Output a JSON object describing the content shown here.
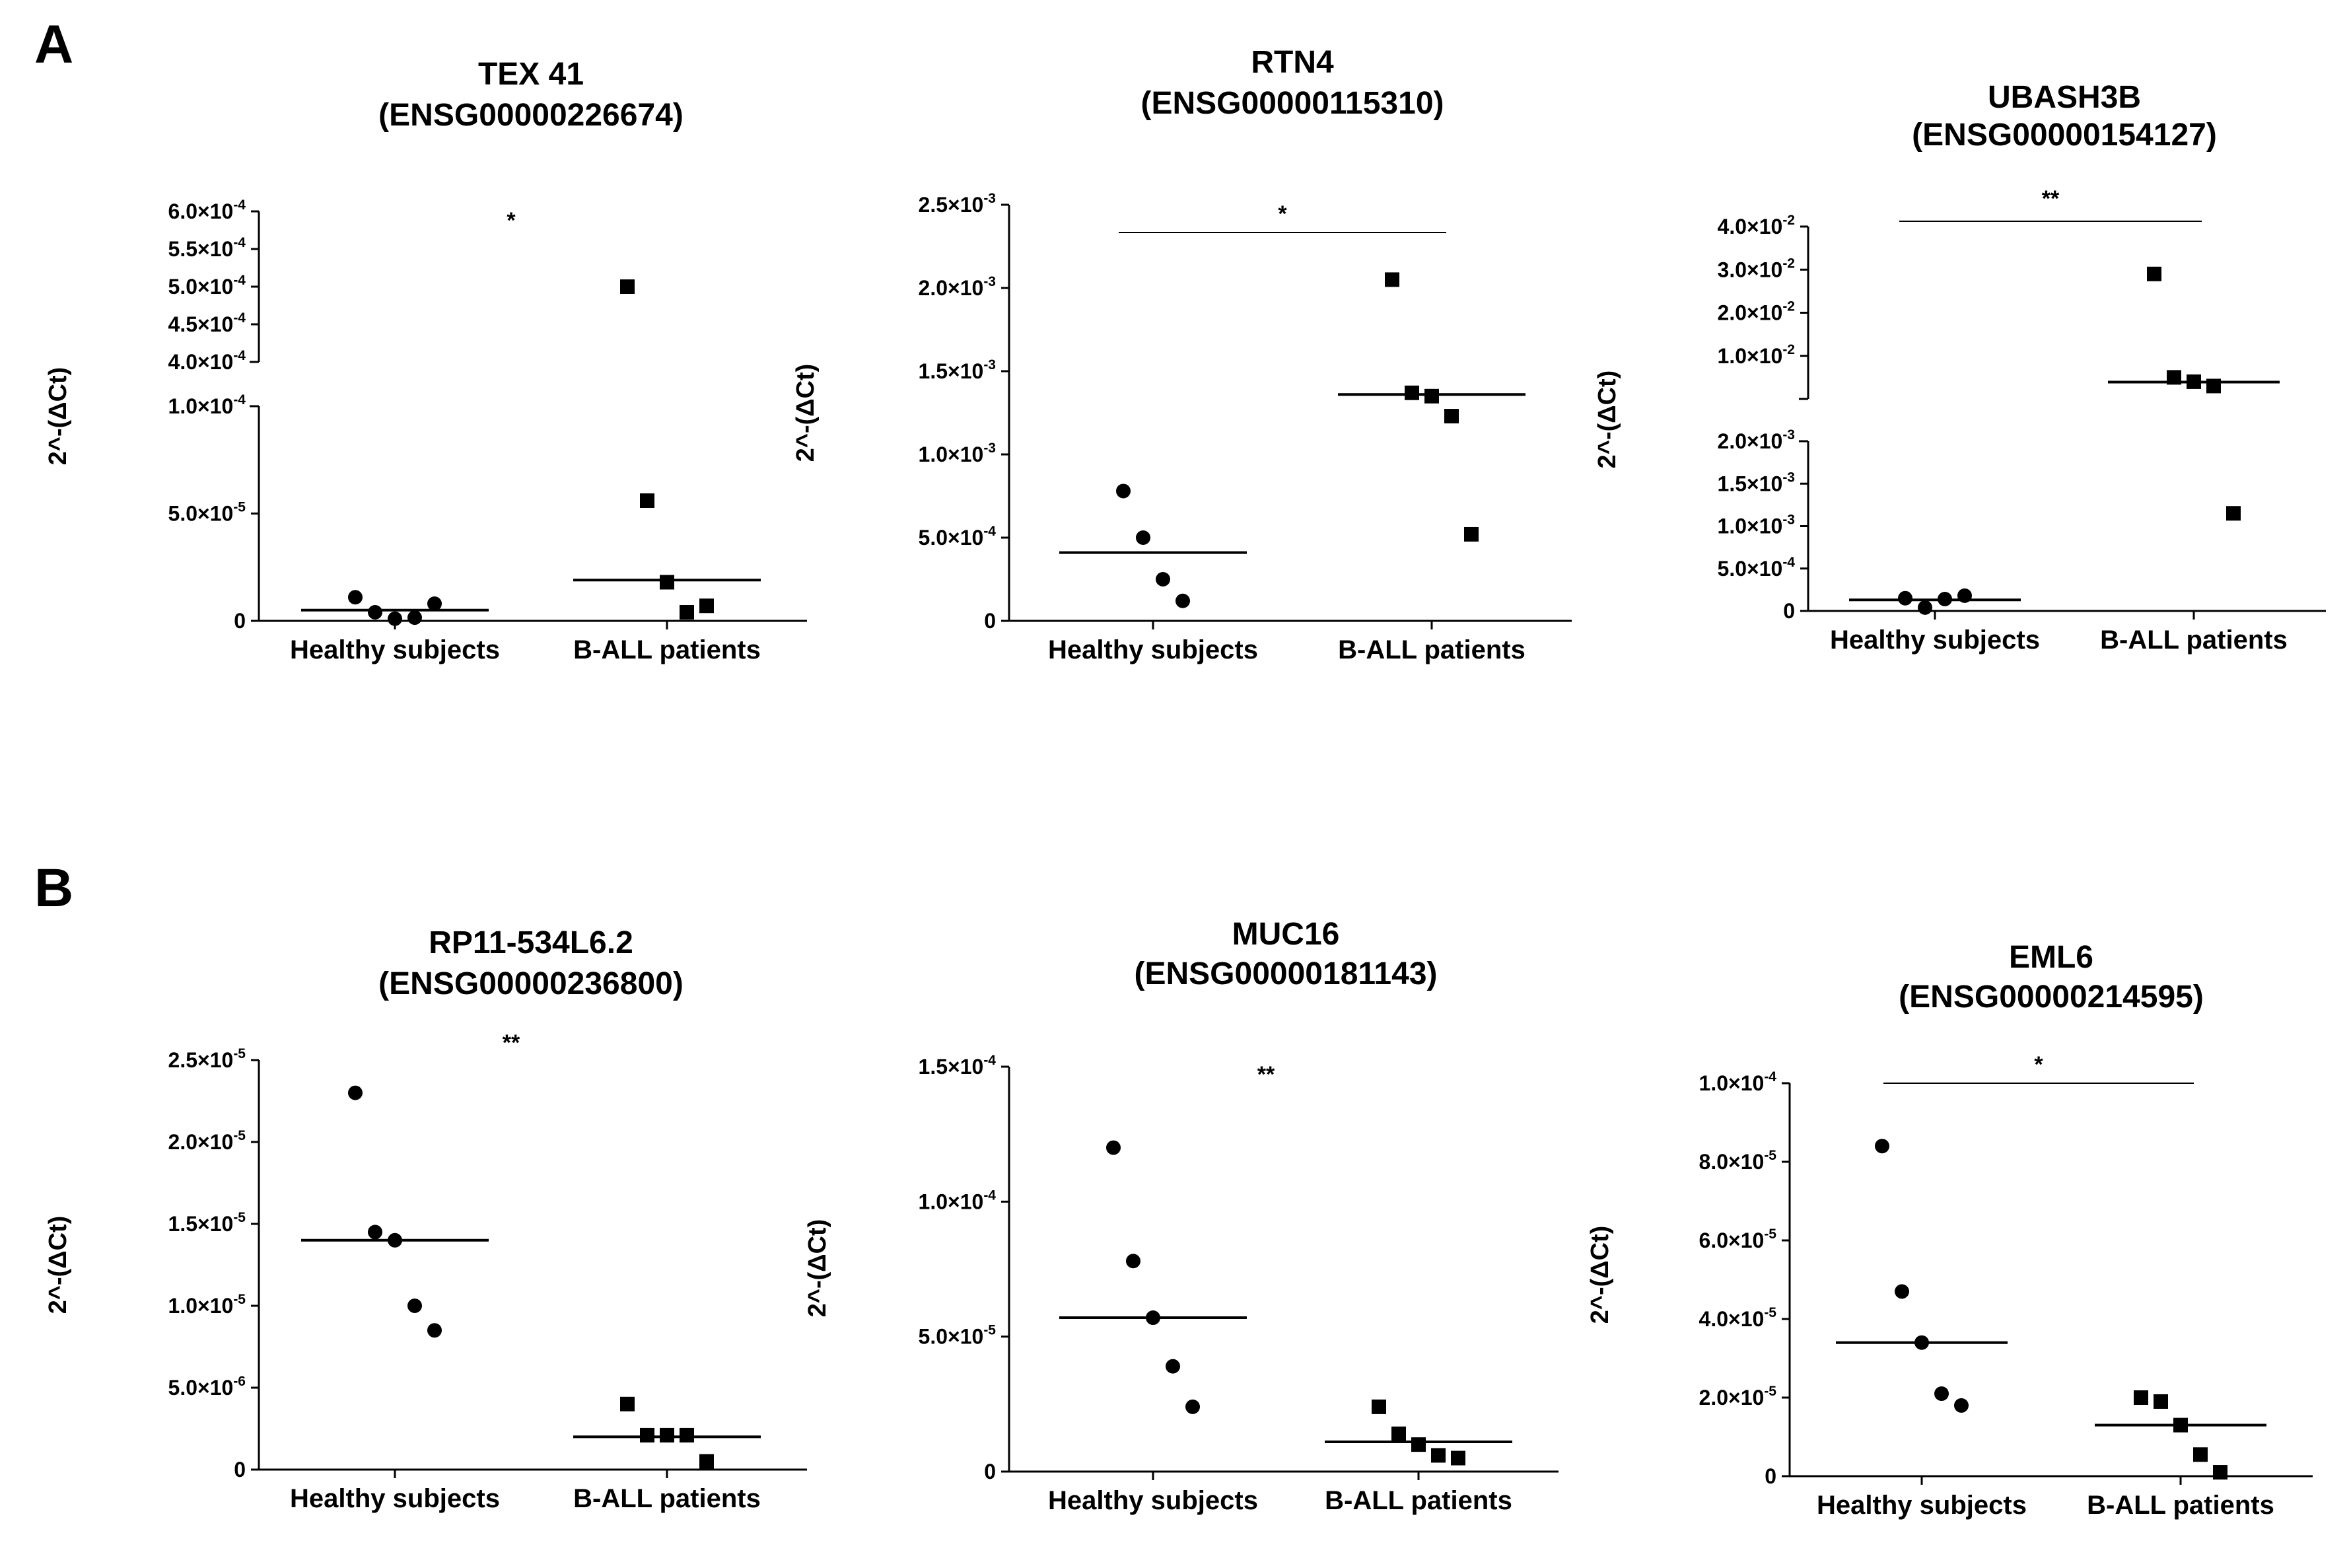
{
  "panel_labels": [
    "A",
    "B"
  ],
  "chart_data": [
    {
      "type": "scatter",
      "title": "TEX 41",
      "subtitle": "(ENSG00000226674)",
      "ylabel": "2^-(ΔCt)",
      "categories": [
        "Healthy subjects",
        "B-ALL patients"
      ],
      "y_axis_break": true,
      "ylim_lower": [
        0,
        0.0001
      ],
      "ylim_upper": [
        0.0004,
        0.0006
      ],
      "yticks_lower": [
        {
          "value": 0,
          "mantissa": "0",
          "exp": ""
        },
        {
          "value": 5e-05,
          "mantissa": "5.0×10",
          "exp": "-5"
        },
        {
          "value": 0.0001,
          "mantissa": "1.0×10",
          "exp": "-4"
        }
      ],
      "yticks_upper": [
        {
          "value": 0.0004,
          "mantissa": "4.0×10",
          "exp": "-4"
        },
        {
          "value": 0.00045,
          "mantissa": "4.5×10",
          "exp": "-4"
        },
        {
          "value": 0.0005,
          "mantissa": "5.0×10",
          "exp": "-4"
        },
        {
          "value": 0.00055,
          "mantissa": "5.5×10",
          "exp": "-4"
        },
        {
          "value": 0.0006,
          "mantissa": "6.0×10",
          "exp": "-4"
        }
      ],
      "series": [
        {
          "name": "Healthy subjects",
          "marker": "circle",
          "values": [
            1.1e-05,
            4e-06,
            1e-06,
            1.5e-06,
            8e-06
          ],
          "median": 5e-06
        },
        {
          "name": "B-ALL patients",
          "marker": "square",
          "values": [
            0.0005,
            5.6e-05,
            1.8e-05,
            4e-06,
            7e-06
          ],
          "median": 1.9e-05
        }
      ],
      "significance": "*",
      "bracket_visible": false
    },
    {
      "type": "scatter",
      "title": "RTN4",
      "subtitle": "(ENSG00000115310)",
      "ylabel": "2^-(ΔCt)",
      "categories": [
        "Healthy subjects",
        "B-ALL patients"
      ],
      "y_axis_break": false,
      "ylim": [
        0,
        0.0025
      ],
      "yticks": [
        {
          "value": 0,
          "mantissa": "0",
          "exp": ""
        },
        {
          "value": 0.0005,
          "mantissa": "5.0×10",
          "exp": "-4"
        },
        {
          "value": 0.001,
          "mantissa": "1.0×10",
          "exp": "-3"
        },
        {
          "value": 0.0015,
          "mantissa": "1.5×10",
          "exp": "-3"
        },
        {
          "value": 0.002,
          "mantissa": "2.0×10",
          "exp": "-3"
        },
        {
          "value": 0.0025,
          "mantissa": "2.5×10",
          "exp": "-3"
        }
      ],
      "series": [
        {
          "name": "Healthy subjects",
          "marker": "circle",
          "values": [
            0.00078,
            0.0005,
            0.00025,
            0.00012
          ],
          "median": 0.00041
        },
        {
          "name": "B-ALL patients",
          "marker": "square",
          "values": [
            0.00205,
            0.00137,
            0.00135,
            0.00123,
            0.00052
          ],
          "median": 0.00136
        }
      ],
      "significance": "*",
      "bracket_visible": true
    },
    {
      "type": "scatter",
      "title": "UBASH3B",
      "subtitle": "(ENSG00000154127)",
      "ylabel": "2^-(ΔCt)",
      "categories": [
        "Healthy subjects",
        "B-ALL patients"
      ],
      "y_axis_break": true,
      "ylim_lower": [
        0,
        0.002
      ],
      "ylim_upper": [
        0,
        0.04
      ],
      "yticks_lower": [
        {
          "value": 0,
          "mantissa": "0",
          "exp": ""
        },
        {
          "value": 0.0005,
          "mantissa": "5.0×10",
          "exp": "-4"
        },
        {
          "value": 0.001,
          "mantissa": "1.0×10",
          "exp": "-3"
        },
        {
          "value": 0.0015,
          "mantissa": "1.5×10",
          "exp": "-3"
        },
        {
          "value": 0.002,
          "mantissa": "2.0×10",
          "exp": "-3"
        }
      ],
      "yticks_upper": [
        {
          "value": 0.01,
          "mantissa": "1.0×10",
          "exp": "-2"
        },
        {
          "value": 0.02,
          "mantissa": "2.0×10",
          "exp": "-2"
        },
        {
          "value": 0.03,
          "mantissa": "3.0×10",
          "exp": "-2"
        },
        {
          "value": 0.04,
          "mantissa": "4.0×10",
          "exp": "-2"
        }
      ],
      "series": [
        {
          "name": "Healthy subjects",
          "marker": "circle",
          "values": [
            0.00015,
            4e-05,
            0.00014,
            0.00018
          ],
          "median": 0.00013
        },
        {
          "name": "B-ALL patients",
          "marker": "square",
          "values": [
            0.029,
            0.005,
            0.004,
            0.003,
            0.00115
          ],
          "median": 0.0039
        }
      ],
      "significance": "**",
      "bracket_visible": true
    },
    {
      "type": "scatter",
      "title": "RP11-534L6.2",
      "subtitle": "(ENSG00000236800)",
      "ylabel": "2^-(ΔCt)",
      "categories": [
        "Healthy subjects",
        "B-ALL patients"
      ],
      "y_axis_break": false,
      "ylim": [
        0,
        2.5e-05
      ],
      "yticks": [
        {
          "value": 0,
          "mantissa": "0",
          "exp": ""
        },
        {
          "value": 5e-06,
          "mantissa": "5.0×10",
          "exp": "-6"
        },
        {
          "value": 1e-05,
          "mantissa": "1.0×10",
          "exp": "-5"
        },
        {
          "value": 1.5e-05,
          "mantissa": "1.5×10",
          "exp": "-5"
        },
        {
          "value": 2e-05,
          "mantissa": "2.0×10",
          "exp": "-5"
        },
        {
          "value": 2.5e-05,
          "mantissa": "2.5×10",
          "exp": "-5"
        }
      ],
      "series": [
        {
          "name": "Healthy subjects",
          "marker": "circle",
          "values": [
            2.3e-05,
            1.45e-05,
            1.4e-05,
            1e-05,
            8.5e-06
          ],
          "median": 1.4e-05
        },
        {
          "name": "B-ALL patients",
          "marker": "square",
          "values": [
            4e-06,
            2.1e-06,
            2.1e-06,
            2.1e-06,
            5e-07
          ],
          "median": 2e-06
        }
      ],
      "significance": "**",
      "bracket_visible": false
    },
    {
      "type": "scatter",
      "title": "MUC16",
      "subtitle": "(ENSG00000181143)",
      "ylabel": "2^-(ΔCt)",
      "categories": [
        "Healthy subjects",
        "B-ALL patients"
      ],
      "y_axis_break": false,
      "ylim": [
        0,
        0.00015
      ],
      "yticks": [
        {
          "value": 0,
          "mantissa": "0",
          "exp": ""
        },
        {
          "value": 5e-05,
          "mantissa": "5.0×10",
          "exp": "-5"
        },
        {
          "value": 0.0001,
          "mantissa": "1.0×10",
          "exp": "-4"
        },
        {
          "value": 0.00015,
          "mantissa": "1.5×10",
          "exp": "-4"
        }
      ],
      "series": [
        {
          "name": "Healthy subjects",
          "marker": "circle",
          "values": [
            0.00012,
            7.8e-05,
            5.7e-05,
            3.9e-05,
            2.4e-05
          ],
          "median": 5.7e-05
        },
        {
          "name": "B-ALL patients",
          "marker": "square",
          "values": [
            2.4e-05,
            1.4e-05,
            1e-05,
            6e-06,
            5e-06
          ],
          "median": 1.1e-05
        }
      ],
      "significance": "**",
      "bracket_visible": false
    },
    {
      "type": "scatter",
      "title": "EML6",
      "subtitle": "(ENSG00000214595)",
      "ylabel": "2^-(ΔCt)",
      "categories": [
        "Healthy subjects",
        "B-ALL patients"
      ],
      "y_axis_break": false,
      "ylim": [
        0,
        0.0001
      ],
      "yticks": [
        {
          "value": 0,
          "mantissa": "0",
          "exp": ""
        },
        {
          "value": 2e-05,
          "mantissa": "2.0×10",
          "exp": "-5"
        },
        {
          "value": 4e-05,
          "mantissa": "4.0×10",
          "exp": "-5"
        },
        {
          "value": 6e-05,
          "mantissa": "6.0×10",
          "exp": "-5"
        },
        {
          "value": 8e-05,
          "mantissa": "8.0×10",
          "exp": "-5"
        },
        {
          "value": 0.0001,
          "mantissa": "1.0×10",
          "exp": "-4"
        }
      ],
      "series": [
        {
          "name": "Healthy subjects",
          "marker": "circle",
          "values": [
            8.4e-05,
            4.7e-05,
            3.4e-05,
            2.1e-05,
            1.8e-05
          ],
          "median": 3.4e-05
        },
        {
          "name": "B-ALL patients",
          "marker": "square",
          "values": [
            2e-05,
            1.9e-05,
            1.3e-05,
            5.5e-06,
            1e-06
          ],
          "median": 1.3e-05
        }
      ],
      "significance": "*",
      "bracket_visible": true
    }
  ]
}
